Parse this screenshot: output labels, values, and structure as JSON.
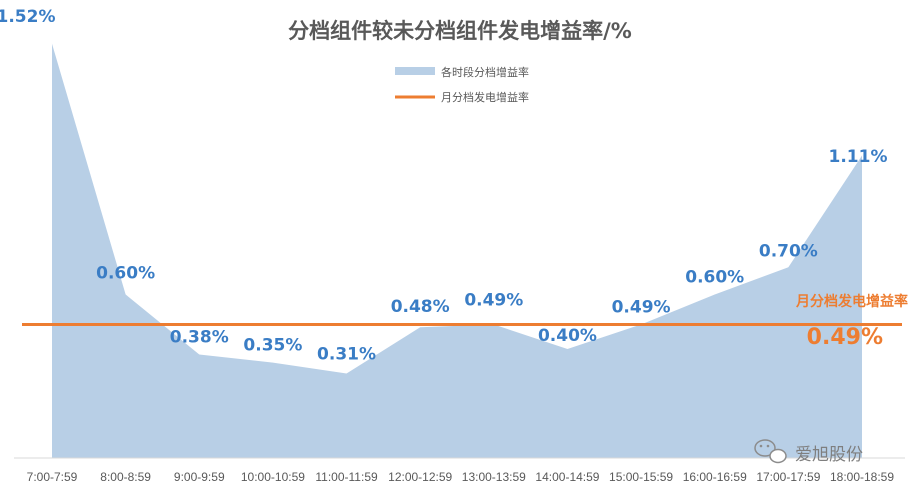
{
  "chart_data": {
    "type": "area",
    "title": "分档组件较未分档组件发电增益率/%",
    "categories": [
      "7:00-7:59",
      "8:00-8:59",
      "9:00-9:59",
      "10:00-10:59",
      "11:00-11:59",
      "12:00-12:59",
      "13:00-13:59",
      "14:00-14:59",
      "15:00-15:59",
      "16:00-16:59",
      "17:00-17:59",
      "18:00-18:59"
    ],
    "series": [
      {
        "name": "各时段分档增益率",
        "type": "area",
        "values": [
          1.52,
          0.6,
          0.38,
          0.35,
          0.31,
          0.48,
          0.49,
          0.4,
          0.49,
          0.6,
          0.7,
          1.11
        ],
        "labels": [
          "1.52%",
          "0.60%",
          "0.38%",
          "0.35%",
          "0.31%",
          "0.48%",
          "0.49%",
          "0.40%",
          "0.49%",
          "0.60%",
          "0.70%",
          "1.11%"
        ],
        "color": "#b8cfe6"
      },
      {
        "name": "月分档发电增益率",
        "type": "line",
        "value": 0.49,
        "color": "#ed7d31"
      }
    ],
    "ref_label": "月分档发电增益率",
    "ref_value_label": "0.49%",
    "ylim": [
      0,
      1.6
    ],
    "grid": false,
    "legend_position": "top-center",
    "label_color": "#3a7dc5"
  },
  "watermark": {
    "text": "爱旭股份",
    "icon": "wechat-icon"
  }
}
